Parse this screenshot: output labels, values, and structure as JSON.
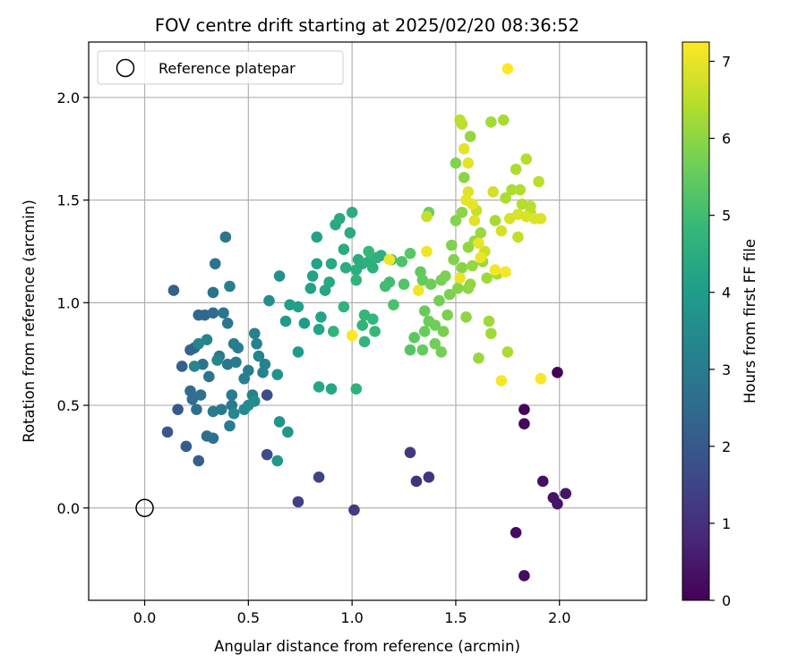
{
  "chart_data": {
    "type": "scatter",
    "title": "FOV centre drift starting at 2025/02/20 08:36:52",
    "xlabel": "Angular distance from reference (arcmin)",
    "ylabel": "Rotation from reference (arcmin)",
    "xlim": [
      -0.27,
      2.42
    ],
    "ylim": [
      -0.45,
      2.27
    ],
    "xticks": [
      0.0,
      0.5,
      1.0,
      1.5,
      2.0
    ],
    "xtick_labels": [
      "0.0",
      "0.5",
      "1.0",
      "1.5",
      "2.0"
    ],
    "yticks": [
      0.0,
      0.5,
      1.0,
      1.5,
      2.0
    ],
    "ytick_labels": [
      "0.0",
      "0.5",
      "1.0",
      "1.5",
      "2.0"
    ],
    "grid": true,
    "legend": {
      "position": "top-left",
      "entries": [
        "Reference platepar"
      ]
    },
    "reference_point": {
      "x": 0.0,
      "y": 0.0,
      "label": "Reference platepar"
    },
    "colorbar": {
      "label": "Hours from first FF file",
      "min": 0,
      "max": 7.25,
      "ticks": [
        0,
        1,
        2,
        3,
        4,
        5,
        6,
        7
      ],
      "colormap": "viridis"
    },
    "points": [
      [
        1.99,
        0.66,
        0.05
      ],
      [
        1.83,
        0.48,
        0.1
      ],
      [
        1.83,
        0.41,
        0.15
      ],
      [
        1.79,
        -0.12,
        0.2
      ],
      [
        1.83,
        -0.33,
        0.25
      ],
      [
        1.92,
        0.13,
        0.3
      ],
      [
        1.97,
        0.05,
        0.35
      ],
      [
        1.99,
        0.02,
        0.4
      ],
      [
        2.03,
        0.07,
        0.45
      ],
      [
        1.31,
        0.13,
        1.05
      ],
      [
        1.37,
        0.15,
        1.1
      ],
      [
        1.28,
        0.27,
        1.2
      ],
      [
        1.01,
        -0.01,
        1.3
      ],
      [
        0.74,
        0.03,
        1.4
      ],
      [
        0.84,
        0.15,
        1.5
      ],
      [
        0.59,
        0.26,
        1.7
      ],
      [
        0.59,
        0.55,
        1.75
      ],
      [
        0.11,
        0.37,
        2.0
      ],
      [
        0.16,
        0.48,
        2.05
      ],
      [
        0.2,
        0.3,
        2.1
      ],
      [
        0.26,
        0.23,
        2.15
      ],
      [
        0.14,
        1.06,
        2.2
      ],
      [
        0.18,
        0.69,
        2.25
      ],
      [
        0.22,
        0.77,
        2.3
      ],
      [
        0.24,
        0.78,
        2.35
      ],
      [
        0.26,
        0.94,
        2.4
      ],
      [
        0.29,
        0.94,
        2.45
      ],
      [
        0.33,
        0.95,
        2.5
      ],
      [
        0.22,
        0.57,
        2.55
      ],
      [
        0.23,
        0.53,
        2.6
      ],
      [
        0.25,
        0.48,
        2.62
      ],
      [
        0.27,
        0.55,
        2.65
      ],
      [
        0.3,
        0.35,
        2.68
      ],
      [
        0.33,
        0.34,
        2.7
      ],
      [
        0.31,
        0.64,
        2.72
      ],
      [
        0.28,
        0.7,
        2.75
      ],
      [
        0.33,
        1.05,
        2.78
      ],
      [
        0.34,
        1.19,
        2.8
      ],
      [
        0.39,
        1.32,
        2.82
      ],
      [
        0.38,
        0.95,
        2.85
      ],
      [
        0.4,
        0.9,
        2.88
      ],
      [
        0.36,
        0.74,
        2.9
      ],
      [
        0.4,
        0.7,
        2.92
      ],
      [
        0.33,
        0.47,
        2.94
      ],
      [
        0.37,
        0.48,
        2.96
      ],
      [
        0.42,
        0.5,
        2.98
      ],
      [
        0.41,
        0.4,
        3.0
      ],
      [
        0.42,
        0.55,
        3.02
      ],
      [
        0.44,
        0.71,
        3.04
      ],
      [
        0.43,
        0.8,
        3.06
      ],
      [
        0.45,
        0.78,
        3.08
      ],
      [
        0.41,
        1.08,
        3.1
      ],
      [
        0.48,
        0.63,
        3.12
      ],
      [
        0.5,
        0.67,
        3.14
      ],
      [
        0.52,
        0.55,
        3.16
      ],
      [
        0.53,
        0.85,
        3.18
      ],
      [
        0.54,
        0.8,
        3.2
      ],
      [
        0.55,
        0.74,
        3.22
      ],
      [
        0.57,
        0.66,
        3.24
      ],
      [
        0.58,
        0.7,
        3.26
      ],
      [
        0.26,
        0.8,
        3.3
      ],
      [
        0.3,
        0.82,
        3.32
      ],
      [
        0.24,
        0.69,
        3.34
      ],
      [
        0.35,
        0.72,
        3.36
      ],
      [
        0.43,
        0.46,
        3.4
      ],
      [
        0.48,
        0.48,
        3.45
      ],
      [
        0.5,
        0.5,
        3.5
      ],
      [
        0.53,
        0.52,
        3.55
      ],
      [
        0.6,
        1.01,
        3.6
      ],
      [
        0.65,
        1.13,
        3.65
      ],
      [
        0.64,
        0.65,
        3.7
      ],
      [
        0.65,
        0.42,
        3.75
      ],
      [
        0.69,
        0.37,
        3.8
      ],
      [
        0.64,
        0.23,
        3.85
      ],
      [
        0.68,
        0.91,
        3.9
      ],
      [
        0.74,
        0.76,
        3.95
      ],
      [
        0.77,
        0.9,
        4.0
      ],
      [
        0.7,
        0.99,
        4.05
      ],
      [
        0.74,
        0.98,
        4.1
      ],
      [
        0.8,
        1.07,
        4.12
      ],
      [
        0.81,
        1.13,
        4.15
      ],
      [
        0.83,
        1.19,
        4.18
      ],
      [
        0.83,
        1.32,
        4.2
      ],
      [
        0.84,
        0.87,
        4.22
      ],
      [
        0.85,
        0.93,
        4.24
      ],
      [
        0.87,
        1.06,
        4.26
      ],
      [
        0.84,
        0.59,
        4.28
      ],
      [
        0.9,
        0.58,
        4.3
      ],
      [
        0.89,
        1.1,
        4.32
      ],
      [
        0.9,
        1.19,
        4.35
      ],
      [
        0.92,
        1.38,
        4.38
      ],
      [
        0.94,
        1.41,
        4.4
      ],
      [
        0.96,
        1.26,
        4.42
      ],
      [
        0.97,
        1.17,
        4.44
      ],
      [
        0.99,
        1.34,
        4.46
      ],
      [
        1.0,
        1.44,
        4.48
      ],
      [
        1.02,
        1.16,
        4.5
      ],
      [
        1.03,
        1.21,
        4.52
      ],
      [
        1.05,
        1.19,
        4.54
      ],
      [
        1.08,
        1.2,
        4.56
      ],
      [
        1.1,
        1.17,
        4.58
      ],
      [
        1.12,
        1.22,
        4.6
      ],
      [
        1.14,
        1.23,
        4.62
      ],
      [
        1.02,
        0.58,
        4.64
      ],
      [
        0.96,
        0.98,
        4.66
      ],
      [
        0.91,
        0.86,
        4.7
      ],
      [
        1.02,
        1.11,
        4.72
      ],
      [
        1.06,
        0.81,
        4.74
      ],
      [
        1.05,
        0.89,
        4.76
      ],
      [
        1.06,
        0.94,
        4.78
      ],
      [
        1.1,
        0.92,
        4.8
      ],
      [
        1.11,
        0.86,
        4.82
      ],
      [
        1.08,
        1.25,
        4.84
      ],
      [
        1.18,
        1.1,
        5.0
      ],
      [
        1.16,
        1.08,
        5.05
      ],
      [
        1.19,
        1.21,
        5.1
      ],
      [
        1.2,
        0.99,
        5.15
      ],
      [
        1.24,
        1.2,
        5.2
      ],
      [
        1.25,
        1.09,
        5.25
      ],
      [
        1.28,
        0.77,
        5.3
      ],
      [
        1.28,
        1.24,
        5.35
      ],
      [
        1.3,
        0.83,
        5.4
      ],
      [
        1.33,
        1.15,
        5.45
      ],
      [
        1.34,
        1.11,
        5.5
      ],
      [
        1.34,
        0.77,
        5.52
      ],
      [
        1.35,
        0.96,
        5.54
      ],
      [
        1.35,
        0.86,
        5.56
      ],
      [
        1.37,
        0.91,
        5.58
      ],
      [
        1.37,
        1.44,
        5.6
      ],
      [
        1.38,
        1.09,
        5.62
      ],
      [
        1.4,
        0.89,
        5.64
      ],
      [
        1.4,
        0.8,
        5.66
      ],
      [
        1.42,
        1.01,
        5.68
      ],
      [
        1.43,
        0.76,
        5.7
      ],
      [
        1.43,
        1.11,
        5.72
      ],
      [
        1.44,
        0.86,
        5.74
      ],
      [
        1.45,
        1.13,
        5.76
      ],
      [
        1.46,
        0.94,
        5.78
      ],
      [
        1.47,
        1.04,
        5.8
      ],
      [
        1.48,
        1.28,
        5.82
      ],
      [
        1.49,
        1.21,
        5.84
      ],
      [
        1.5,
        1.68,
        5.86
      ],
      [
        1.5,
        1.4,
        5.88
      ],
      [
        1.51,
        1.07,
        5.9
      ],
      [
        1.53,
        1.17,
        5.92
      ],
      [
        1.53,
        1.44,
        5.94
      ],
      [
        1.54,
        1.61,
        5.96
      ],
      [
        1.55,
        0.93,
        5.98
      ],
      [
        1.56,
        1.07,
        6.0
      ],
      [
        1.56,
        1.27,
        6.02
      ],
      [
        1.57,
        1.09,
        6.04
      ],
      [
        1.57,
        1.81,
        6.06
      ],
      [
        1.58,
        1.18,
        6.08
      ],
      [
        1.59,
        1.3,
        6.1
      ],
      [
        1.61,
        0.73,
        6.12
      ],
      [
        1.62,
        1.34,
        6.14
      ],
      [
        1.63,
        1.2,
        6.16
      ],
      [
        1.65,
        1.12,
        6.18
      ],
      [
        1.66,
        0.91,
        6.2
      ],
      [
        1.67,
        0.85,
        6.22
      ],
      [
        1.67,
        1.88,
        6.24
      ],
      [
        1.69,
        1.4,
        6.26
      ],
      [
        1.7,
        1.14,
        6.28
      ],
      [
        1.73,
        1.89,
        6.3
      ],
      [
        1.74,
        1.51,
        6.32
      ],
      [
        1.75,
        0.76,
        6.34
      ],
      [
        1.77,
        1.55,
        6.36
      ],
      [
        1.79,
        1.65,
        6.38
      ],
      [
        1.81,
        1.55,
        6.4
      ],
      [
        1.82,
        1.48,
        6.42
      ],
      [
        1.84,
        1.7,
        6.44
      ],
      [
        1.86,
        1.44,
        6.46
      ],
      [
        1.86,
        1.47,
        6.48
      ],
      [
        1.9,
        1.59,
        6.5
      ],
      [
        1.52,
        1.89,
        6.52
      ],
      [
        1.53,
        1.87,
        6.55
      ],
      [
        1.8,
        1.32,
        6.58
      ],
      [
        1.36,
        1.42,
        6.6
      ],
      [
        1.6,
        1.45,
        6.65
      ],
      [
        1.64,
        1.25,
        6.7
      ],
      [
        1.68,
        1.54,
        6.75
      ],
      [
        1.72,
        1.35,
        6.78
      ],
      [
        1.76,
        1.41,
        6.8
      ],
      [
        1.8,
        1.43,
        6.82
      ],
      [
        1.84,
        1.42,
        6.84
      ],
      [
        1.88,
        1.41,
        6.86
      ],
      [
        1.91,
        1.41,
        6.88
      ],
      [
        1.56,
        1.54,
        6.9
      ],
      [
        1.59,
        1.4,
        6.92
      ],
      [
        1.54,
        1.75,
        6.94
      ],
      [
        1.56,
        1.68,
        6.96
      ],
      [
        1.55,
        1.5,
        6.98
      ],
      [
        1.58,
        1.48,
        7.0
      ],
      [
        1.61,
        1.29,
        7.02
      ],
      [
        1.62,
        1.22,
        7.04
      ],
      [
        1.52,
        1.12,
        7.06
      ],
      [
        1.36,
        1.25,
        7.08
      ],
      [
        1.32,
        1.06,
        7.1
      ],
      [
        1.18,
        1.21,
        7.12
      ],
      [
        1.69,
        1.16,
        7.14
      ],
      [
        1.74,
        1.15,
        7.16
      ],
      [
        1.72,
        0.62,
        7.18
      ],
      [
        1.91,
        0.63,
        7.2
      ],
      [
        1.0,
        0.84,
        7.22
      ],
      [
        1.75,
        2.14,
        7.25
      ]
    ]
  }
}
